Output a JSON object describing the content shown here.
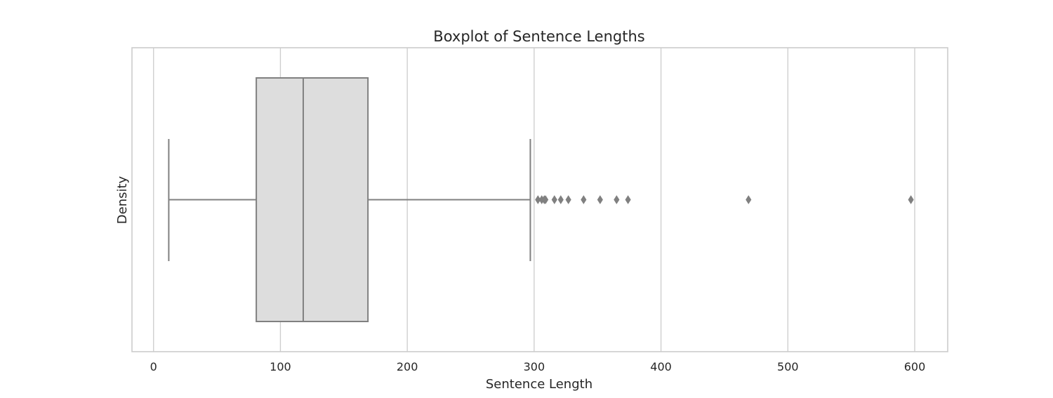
{
  "chart_data": {
    "type": "box",
    "title": "Boxplot of Sentence Lengths",
    "xlabel": "Sentence Length",
    "ylabel": "Density",
    "xlim": [
      -17,
      626
    ],
    "xticks": [
      0,
      100,
      200,
      300,
      400,
      500,
      600
    ],
    "grid": "vertical",
    "box": {
      "whisker_low": 12,
      "q1": 81,
      "median": 118,
      "q3": 169,
      "whisker_high": 297
    },
    "outliers": [
      303,
      306,
      308,
      309,
      316,
      321,
      327,
      339,
      352,
      365,
      374,
      469,
      597
    ],
    "colors": {
      "box_fill": "#dddddd",
      "line": "#808080",
      "grid": "#cccccc",
      "frame": "#cccccc",
      "outlier": "#808080"
    }
  }
}
